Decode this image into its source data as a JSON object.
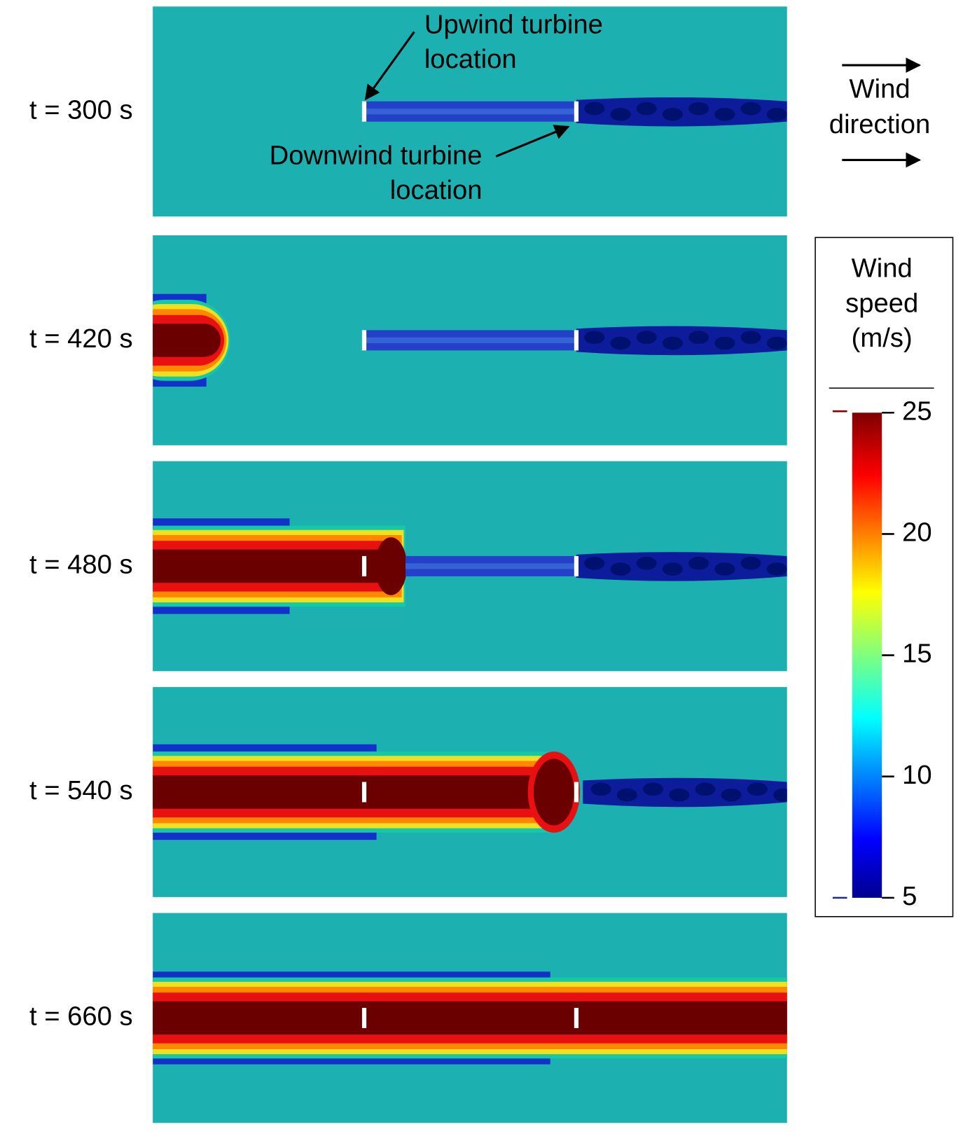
{
  "panels": [
    {
      "label": "t = 300 s"
    },
    {
      "label": "t = 420 s"
    },
    {
      "label": "t = 480 s"
    },
    {
      "label": "t = 540 s"
    },
    {
      "label": "t = 660 s"
    }
  ],
  "annotations": {
    "upwind": [
      "Upwind turbine",
      "location"
    ],
    "downwind": [
      "Downwind turbine",
      "location"
    ]
  },
  "wind_direction": [
    "Wind",
    "direction"
  ],
  "colorbar": {
    "title": [
      "Wind",
      "speed",
      "(m/s)"
    ],
    "range": [
      5,
      25
    ],
    "ticks": [
      5,
      10,
      15,
      20,
      25
    ]
  }
}
